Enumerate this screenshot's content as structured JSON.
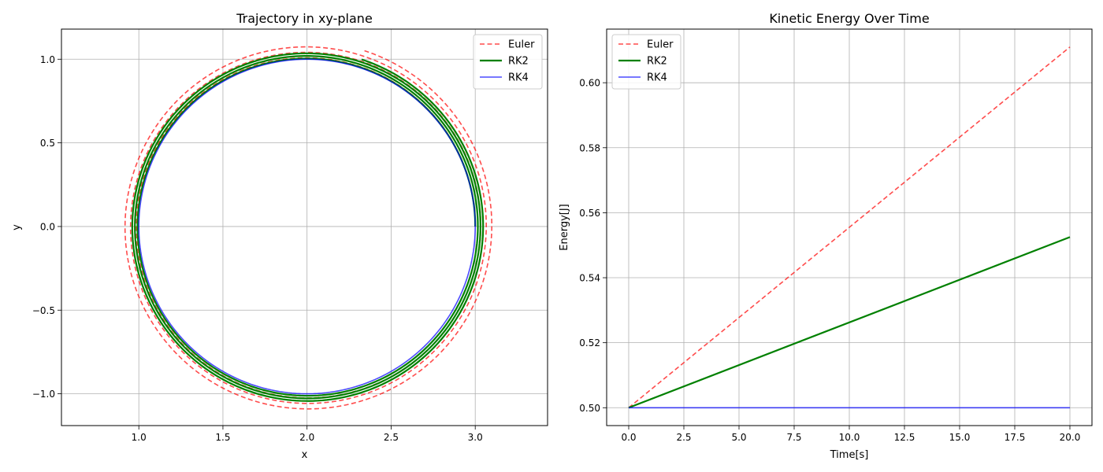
{
  "chart_data": [
    {
      "type": "line",
      "title": "Trajectory in xy-plane",
      "xlabel": "x",
      "ylabel": "y",
      "xlim": [
        0.54,
        3.43
      ],
      "ylim": [
        -1.19,
        1.18
      ],
      "aspect": "equal",
      "grid": true,
      "legend": "upper right",
      "xticks": [
        1.0,
        1.5,
        2.0,
        2.5,
        3.0
      ],
      "xtick_labels": [
        "1.0",
        "1.5",
        "2.0",
        "2.5",
        "3.0"
      ],
      "yticks": [
        -1.0,
        -0.5,
        0.0,
        0.5,
        1.0
      ],
      "ytick_labels": [
        "−1.0",
        "−0.5",
        "0.0",
        "0.5",
        "1.0"
      ],
      "series": [
        {
          "name": "Euler",
          "color": "#ff0000",
          "style": "dashed",
          "alpha": 0.7,
          "center": [
            2.0,
            0.0
          ],
          "r_start": 1.0,
          "r_end": 1.105,
          "revolutions": 3.2
        },
        {
          "name": "RK2",
          "color": "#008000",
          "style": "solid",
          "alpha": 1.0,
          "center": [
            2.0,
            0.0
          ],
          "r_start": 1.0,
          "r_end": 1.05,
          "revolutions": 3.2
        },
        {
          "name": "RK4",
          "color": "#0000ff",
          "style": "solid",
          "alpha": 0.7,
          "center": [
            2.0,
            0.0
          ],
          "r_start": 1.0,
          "r_end": 1.0,
          "revolutions": 3.2
        }
      ]
    },
    {
      "type": "line",
      "title": "Kinetic Energy Over Time",
      "xlabel": "Time[s]",
      "ylabel": "Energy[J]",
      "xlim": [
        -1.0,
        21.0
      ],
      "ylim": [
        0.4945,
        0.6165
      ],
      "grid": true,
      "legend": "upper left",
      "xticks": [
        0.0,
        2.5,
        5.0,
        7.5,
        10.0,
        12.5,
        15.0,
        17.5,
        20.0
      ],
      "xtick_labels": [
        "0.0",
        "2.5",
        "5.0",
        "7.5",
        "10.0",
        "12.5",
        "15.0",
        "17.5",
        "20.0"
      ],
      "yticks": [
        0.5,
        0.52,
        0.54,
        0.56,
        0.58,
        0.6
      ],
      "ytick_labels": [
        "0.50",
        "0.52",
        "0.54",
        "0.56",
        "0.58",
        "0.60"
      ],
      "series": [
        {
          "name": "Euler",
          "color": "#ff0000",
          "style": "dashed",
          "alpha": 0.7,
          "x": [
            0,
            20
          ],
          "y": [
            0.5,
            0.611
          ]
        },
        {
          "name": "RK2",
          "color": "#008000",
          "style": "solid",
          "alpha": 1.0,
          "x": [
            0,
            20
          ],
          "y": [
            0.5,
            0.5525
          ]
        },
        {
          "name": "RK4",
          "color": "#0000ff",
          "style": "solid",
          "alpha": 0.7,
          "x": [
            0,
            20
          ],
          "y": [
            0.5,
            0.5
          ]
        }
      ]
    }
  ]
}
